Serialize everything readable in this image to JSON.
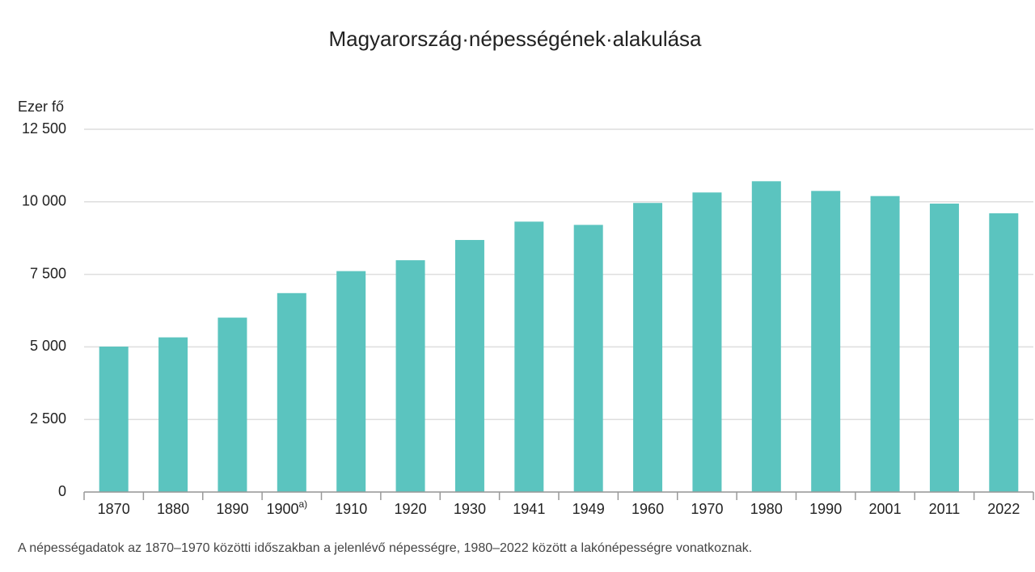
{
  "chart_data": {
    "type": "bar",
    "title": "Magyarország·népességének·alakulása",
    "y_label": "Ezer fő",
    "categories": [
      "1870",
      "1880",
      "1890",
      "1900",
      "1910",
      "1920",
      "1930",
      "1941",
      "1949",
      "1960",
      "1970",
      "1980",
      "1990",
      "2001",
      "2011",
      "2022"
    ],
    "category_superscripts": [
      null,
      null,
      null,
      "a)",
      null,
      null,
      null,
      null,
      null,
      null,
      null,
      null,
      null,
      null,
      null,
      null
    ],
    "values": [
      5011,
      5329,
      6009,
      6854,
      7612,
      7987,
      8685,
      9317,
      9205,
      9961,
      10322,
      10709,
      10375,
      10198,
      9938,
      9604
    ],
    "color": "#5bc4bf",
    "ylim": [
      0,
      12500
    ],
    "yticks": [
      0,
      {
        "value": 2500,
        "label": "2 500"
      },
      {
        "value": 5000,
        "label": "5 000"
      },
      {
        "value": 7500,
        "label": "7 500"
      },
      {
        "value": 10000,
        "label": "10 000"
      },
      {
        "value": 12500,
        "label": "12 500"
      }
    ],
    "grid": true,
    "footnote": "A népességadatok az 1870–1970 közötti időszakban a jelenlévő népességre, 1980–2022 között a lakónépességre vonatkoznak."
  }
}
